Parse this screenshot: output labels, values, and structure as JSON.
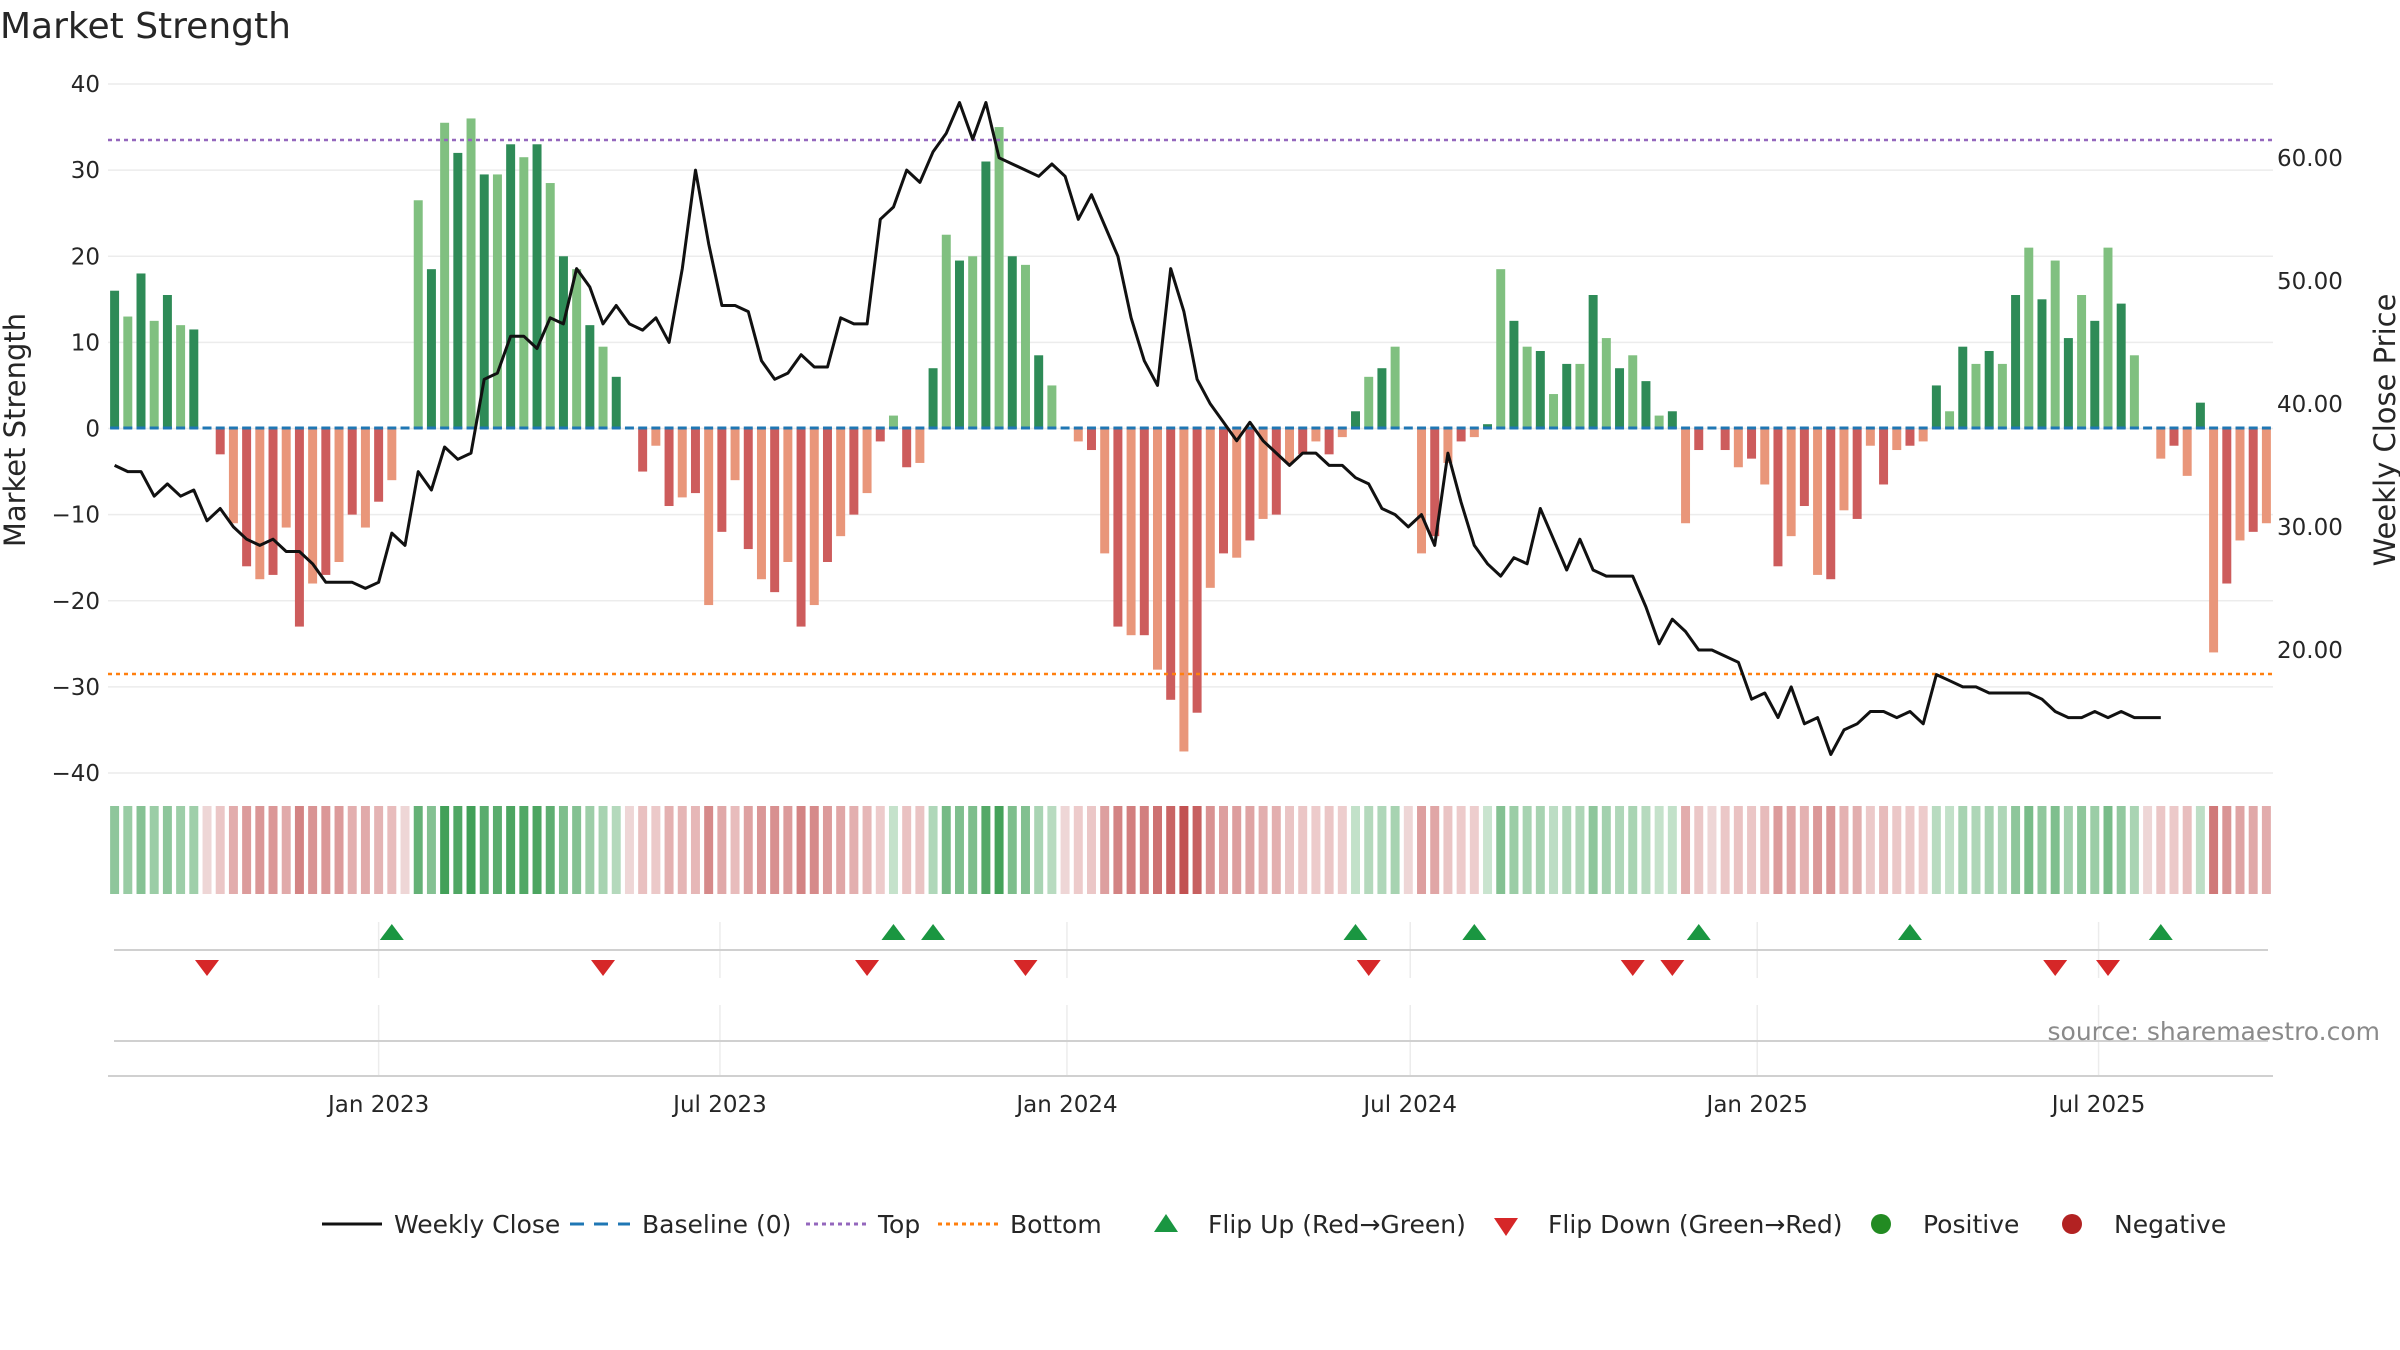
{
  "chart_data": {
    "type": "bar",
    "title": "Market Strength",
    "ylabel": "Market Strength",
    "ylabel_right": "Weekly Close Price",
    "ylim": [
      -40,
      40
    ],
    "ylim_right": [
      10,
      66
    ],
    "yticks": [
      "40",
      "30",
      "20",
      "10",
      "0",
      "−10",
      "−20",
      "−30",
      "−40"
    ],
    "yticks_right": [
      "60.00",
      "50.00",
      "40.00",
      "30.00",
      "20.00"
    ],
    "xticks": [
      "Jan 2023",
      "Jul 2023",
      "Jan 2024",
      "Jul 2024",
      "Jan 2025",
      "Jul 2025"
    ],
    "top_level": 33.5,
    "bottom_level": -28.5,
    "baseline": 0,
    "grid": true,
    "legend_position": "bottom",
    "colors": {
      "positive_strong": "#2e8b57",
      "positive_weak": "#80c080",
      "negative_strong": "#cd5c5c",
      "negative_weak": "#e9967a",
      "line": "#111111",
      "top": "#9467bd",
      "bottom": "#ff7f0e",
      "baseline": "#1f77b4",
      "flip_up": "#1a9641",
      "flip_down": "#d62728"
    },
    "strength": [
      16,
      13,
      18,
      12.5,
      15.5,
      12,
      11.5,
      0,
      -3,
      -11,
      -16,
      -17.5,
      -17,
      -11.5,
      -23,
      -18,
      -17,
      -15.5,
      -10,
      -11.5,
      -8.5,
      -6,
      0,
      26.5,
      18.5,
      35.5,
      32,
      36,
      29.5,
      29.5,
      33,
      31.5,
      33,
      28.5,
      20,
      18.5,
      12,
      9.5,
      6,
      0,
      -5,
      -2,
      -9,
      -8,
      -7.5,
      -20.5,
      -12,
      -6,
      -14,
      -17.5,
      -19,
      -15.5,
      -23,
      -20.5,
      -15.5,
      -12.5,
      -10,
      -7.5,
      -1.5,
      1.5,
      -4.5,
      -4,
      7,
      22.5,
      19.5,
      20,
      31,
      35,
      20,
      19,
      8.5,
      5,
      0,
      -1.5,
      -2.5,
      -14.5,
      -23,
      -24,
      -24,
      -28,
      -31.5,
      -37.5,
      -33,
      -18.5,
      -14.5,
      -15,
      -13,
      -10.5,
      -10,
      -4,
      -3,
      -1.5,
      -3,
      -1,
      2,
      6,
      7,
      9.5,
      0,
      -14.5,
      -12.5,
      -4,
      -1.5,
      -1,
      0.5,
      18.5,
      12.5,
      9.5,
      9,
      4,
      7.5,
      7.5,
      15.5,
      10.5,
      7,
      8.5,
      5.5,
      1.5,
      2,
      -11,
      -2.5,
      0,
      -2.5,
      -4.5,
      -3.5,
      -6.5,
      -16,
      -12.5,
      -9,
      -17,
      -17.5,
      -9.5,
      -10.5,
      -2,
      -6.5,
      -2.5,
      -2,
      -1.5,
      5,
      2,
      9.5,
      7.5,
      9,
      7.5,
      15.5,
      21,
      15,
      19.5,
      10.5,
      15.5,
      12.5,
      21,
      14.5,
      8.5,
      0,
      -3.5,
      -2,
      -5.5,
      3,
      -26,
      -18,
      -13,
      -12,
      -11
    ],
    "weekly_close": [
      35,
      34.5,
      34.5,
      32.5,
      33.5,
      32.5,
      33,
      30.5,
      31.5,
      30,
      29,
      28.5,
      29,
      28,
      28,
      27,
      25.5,
      25.5,
      25.5,
      25,
      25.5,
      29.5,
      28.5,
      34.5,
      33,
      36.5,
      35.5,
      36,
      42,
      42.5,
      45.5,
      45.5,
      44.5,
      47,
      46.5,
      51,
      49.5,
      46.5,
      48,
      46.5,
      46,
      47,
      45,
      51,
      59,
      53,
      48,
      48,
      47.5,
      43.5,
      42,
      42.5,
      44,
      43,
      43,
      47,
      46.5,
      46.5,
      55,
      56,
      59,
      58,
      60.5,
      62,
      64.5,
      61.5,
      64.5,
      60,
      59.5,
      59,
      58.5,
      59.5,
      58.5,
      55,
      57,
      54.5,
      52,
      47,
      43.5,
      41.5,
      51,
      47.5,
      42,
      40,
      38.5,
      37,
      38.5,
      37,
      36,
      35,
      36,
      36,
      35,
      35,
      34,
      33.5,
      31.5,
      31,
      30,
      31,
      28.5,
      36,
      32,
      28.5,
      27,
      26,
      27.5,
      27,
      31.5,
      29,
      26.5,
      29,
      26.5,
      26,
      26,
      26,
      23.5,
      20.5,
      22.5,
      21.5,
      20,
      20,
      19.5,
      19,
      16,
      16.5,
      14.5,
      17,
      14,
      14.5,
      11.5,
      13.5,
      14,
      15,
      15,
      14.5,
      15,
      14,
      18,
      17.5,
      17,
      17,
      16.5,
      16.5,
      16.5,
      16.5,
      16,
      15,
      14.5,
      14.5,
      15,
      14.5,
      15,
      14.5,
      14.5,
      14.5
    ],
    "flip_up_weeks": [
      21,
      59,
      62,
      94,
      103,
      120,
      136,
      155
    ],
    "flip_down_weeks": [
      7,
      37,
      57,
      69,
      95,
      115,
      118,
      147,
      151
    ],
    "legend": [
      {
        "label": "Weekly Close",
        "kind": "line"
      },
      {
        "label": "Baseline (0)",
        "kind": "dash"
      },
      {
        "label": "Top",
        "kind": "dot-purple"
      },
      {
        "label": "Bottom",
        "kind": "dot-orange"
      },
      {
        "label": "Flip Up (Red→Green)",
        "kind": "tri-up"
      },
      {
        "label": "Flip Down (Green→Red)",
        "kind": "tri-down"
      },
      {
        "label": "Positive",
        "kind": "circle-green"
      },
      {
        "label": "Negative",
        "kind": "circle-red"
      }
    ],
    "source": "source: sharemaestro.com"
  }
}
